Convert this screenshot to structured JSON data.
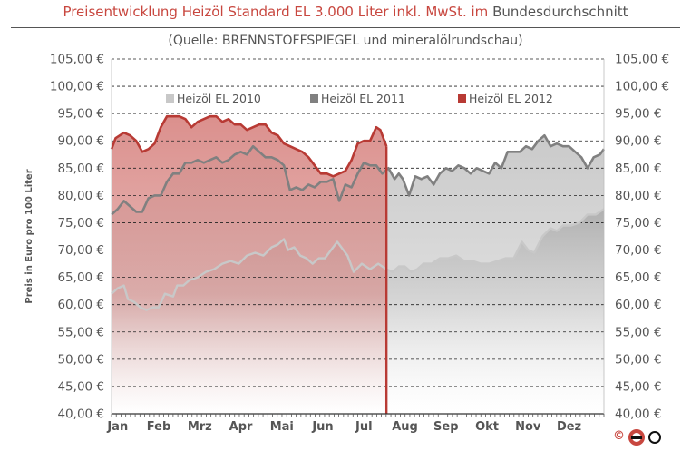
{
  "header": {
    "title_red": "Preisentwicklung Heizöl Standard EL 3.000 Liter inkl. MwSt. im",
    "title_gray": "Bundesdurchschnitt",
    "subtitle": "(Quelle: BRENNSTOFFSPIEGEL  und mineralölrundschau)",
    "copyright": "©"
  },
  "colors": {
    "title_red": "#c8473f",
    "text_gray": "#555555",
    "series_2010": "#c8c8c8",
    "series_2011": "#808080",
    "series_2012": "#b83a34",
    "fill_2012": "#d98a87",
    "fill_gray": "#c4c4c4",
    "grid": "#222222"
  },
  "chart_data": {
    "type": "line",
    "title": "Preisentwicklung Heizöl Standard EL 3.000 Liter inkl. MwSt. im Bundesdurchschnitt",
    "subtitle": "(Quelle: BRENNSTOFFSPIEGEL  und mineralölrundschau)",
    "ylabel": "Preis in Euro pro 100 Liter",
    "xlabel": "",
    "ylim": [
      40,
      105
    ],
    "ytick_labels": [
      "40,00 €",
      "45,00 €",
      "50,00 €",
      "55,00 €",
      "60,00 €",
      "65,00 €",
      "70,00 €",
      "75,00 €",
      "80,00 €",
      "85,00 €",
      "90,00 €",
      "95,00 €",
      "100,00 €",
      "105,00 €"
    ],
    "yticks": [
      40,
      45,
      50,
      55,
      60,
      65,
      70,
      75,
      80,
      85,
      90,
      95,
      100,
      105
    ],
    "categories": [
      "Jan",
      "Feb",
      "Mrz",
      "Apr",
      "Mai",
      "Jun",
      "Jul",
      "Aug",
      "Sep",
      "Okt",
      "Nov",
      "Dez"
    ],
    "x_unit": "month (0 = 1. Jan, 12 = 31. Dez)",
    "grid": "horizontal dashed",
    "legend_position": "top",
    "series": [
      {
        "name": "Heizöl EL 2010",
        "x": [
          0,
          0.15,
          0.3,
          0.4,
          0.55,
          0.7,
          0.85,
          1,
          1.15,
          1.3,
          1.5,
          1.6,
          1.75,
          1.9,
          2.1,
          2.3,
          2.5,
          2.7,
          2.9,
          3.1,
          3.3,
          3.5,
          3.7,
          3.9,
          4.05,
          4.2,
          4.3,
          4.45,
          4.6,
          4.75,
          4.9,
          5.05,
          5.2,
          5.35,
          5.5,
          5.6,
          5.75,
          5.9,
          6.1,
          6.3,
          6.5,
          6.7,
          6.85,
          7,
          7.15,
          7.3,
          7.45,
          7.6,
          7.8,
          8,
          8.2,
          8.4,
          8.6,
          8.8,
          9,
          9.2,
          9.4,
          9.6,
          9.8,
          10,
          10.15,
          10.3,
          10.5,
          10.7,
          10.85,
          11,
          11.2,
          11.4,
          11.6,
          11.8,
          12
        ],
        "values": [
          62,
          63,
          63.5,
          61,
          60.5,
          59.5,
          59,
          59.5,
          59.5,
          62,
          61.5,
          63.5,
          63.5,
          64.5,
          65,
          66,
          66.5,
          67.5,
          68,
          67.5,
          69,
          69.5,
          69,
          70.5,
          71,
          72,
          70,
          70.5,
          69,
          68.5,
          67.5,
          68.5,
          68.5,
          70,
          71.5,
          70.5,
          69,
          66,
          67.5,
          66.5,
          67.5,
          66.5,
          66,
          67,
          67,
          66,
          66.5,
          67.5,
          67.5,
          68.5,
          68.5,
          69,
          68,
          68,
          67.5,
          67.5,
          68,
          68.5,
          68.5,
          71.5,
          70,
          69.5,
          72.5,
          74,
          73.5,
          74.5,
          74.5,
          75,
          76.5,
          76.5,
          77.5
        ]
      },
      {
        "name": "Heizöl EL 2011",
        "x": [
          0,
          0.15,
          0.3,
          0.45,
          0.6,
          0.75,
          0.9,
          1.05,
          1.2,
          1.35,
          1.5,
          1.65,
          1.8,
          1.95,
          2.1,
          2.25,
          2.4,
          2.55,
          2.7,
          2.85,
          3,
          3.15,
          3.3,
          3.45,
          3.6,
          3.75,
          3.9,
          4.05,
          4.2,
          4.35,
          4.5,
          4.65,
          4.8,
          4.95,
          5.1,
          5.25,
          5.4,
          5.55,
          5.7,
          5.85,
          6,
          6.15,
          6.3,
          6.45,
          6.6,
          6.75,
          6.9,
          7,
          7.1,
          7.25,
          7.4,
          7.55,
          7.7,
          7.85,
          8,
          8.15,
          8.3,
          8.45,
          8.6,
          8.75,
          8.9,
          9.05,
          9.2,
          9.35,
          9.5,
          9.65,
          9.8,
          9.95,
          10.1,
          10.25,
          10.4,
          10.55,
          10.7,
          10.85,
          11,
          11.15,
          11.3,
          11.45,
          11.6,
          11.75,
          11.9,
          12
        ],
        "values": [
          76.5,
          77.5,
          79,
          78,
          77,
          77,
          79.5,
          80,
          80,
          82.5,
          84,
          84,
          86,
          86,
          86.5,
          86,
          86.5,
          87,
          86,
          86.5,
          87.5,
          88,
          87.5,
          89,
          88,
          87,
          87,
          86.5,
          85.5,
          81,
          81.5,
          81,
          82,
          81.5,
          82.5,
          82.5,
          83,
          79,
          82,
          81.5,
          84,
          86,
          85.5,
          85.5,
          84,
          85,
          83,
          84,
          83,
          80,
          83.5,
          83,
          83.5,
          82,
          84,
          85,
          84.5,
          85.5,
          85,
          84,
          85,
          84.5,
          84,
          86,
          85,
          88,
          88,
          88,
          89,
          88.5,
          90,
          91,
          89,
          89.5,
          89,
          89,
          88,
          87,
          85,
          87,
          87.5,
          88.5
        ]
      },
      {
        "name": "Heizöl EL 2012",
        "x": [
          0,
          0.1,
          0.2,
          0.3,
          0.45,
          0.6,
          0.75,
          0.9,
          1.05,
          1.2,
          1.35,
          1.5,
          1.65,
          1.8,
          1.95,
          2.1,
          2.25,
          2.4,
          2.55,
          2.7,
          2.85,
          3,
          3.15,
          3.3,
          3.45,
          3.6,
          3.75,
          3.9,
          4.05,
          4.2,
          4.35,
          4.5,
          4.65,
          4.8,
          4.95,
          5.1,
          5.25,
          5.4,
          5.55,
          5.7,
          5.85,
          6,
          6.15,
          6.3,
          6.45,
          6.55,
          6.65,
          6.7
        ],
        "values": [
          88.5,
          90.5,
          91,
          91.5,
          91,
          90,
          88,
          88.5,
          89.5,
          92.5,
          94.5,
          94.5,
          94.5,
          94,
          92.5,
          93.5,
          94,
          94.5,
          94.5,
          93.5,
          94,
          93,
          93,
          92,
          92.5,
          93,
          93,
          91.5,
          91,
          89.5,
          89,
          88.5,
          88,
          87,
          85.5,
          84,
          84,
          83.5,
          84,
          84.5,
          86.5,
          89.5,
          90,
          90,
          92.5,
          92,
          90,
          89
        ]
      }
    ]
  }
}
